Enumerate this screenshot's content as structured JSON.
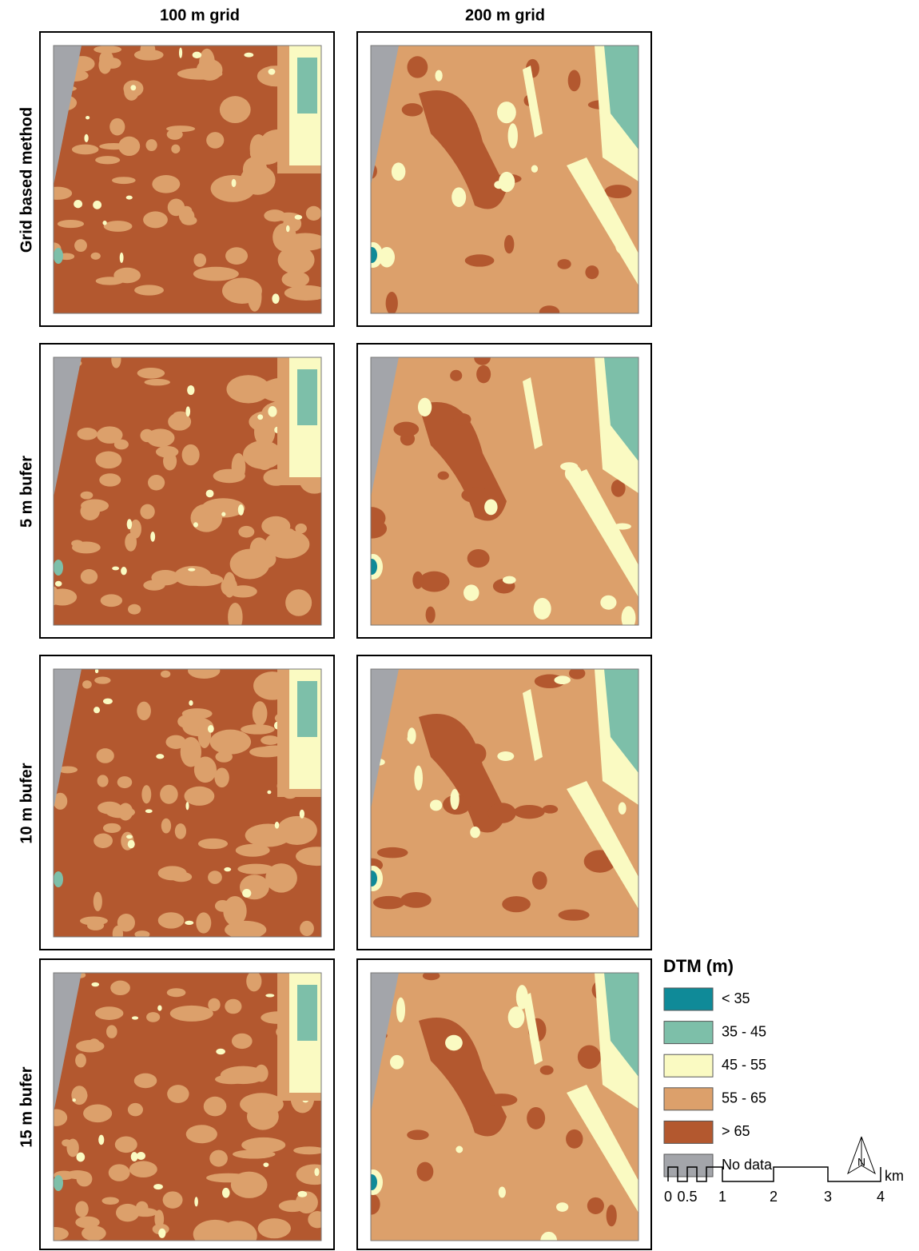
{
  "columns": [
    "100 m grid",
    "200 m grid"
  ],
  "rows": [
    "Grid based method",
    "5 m bufer",
    "10 m bufer",
    "15 m bufer"
  ],
  "legend": {
    "title": "DTM (m)",
    "items": [
      {
        "label": "< 35",
        "color": "#0f8a98"
      },
      {
        "label": "35 - 45",
        "color": "#7dbfa9"
      },
      {
        "label": "45 - 55",
        "color": "#fafac2"
      },
      {
        "label": "55 - 65",
        "color": "#dca06b"
      },
      {
        "label": "> 65",
        "color": "#b3582f"
      },
      {
        "label": "No data",
        "color": "#a3a5aa"
      }
    ]
  },
  "scale_bar": {
    "labels": [
      "0",
      "0.5",
      "1",
      "2",
      "3",
      "4"
    ],
    "unit": "km"
  },
  "north_arrow": "N"
}
